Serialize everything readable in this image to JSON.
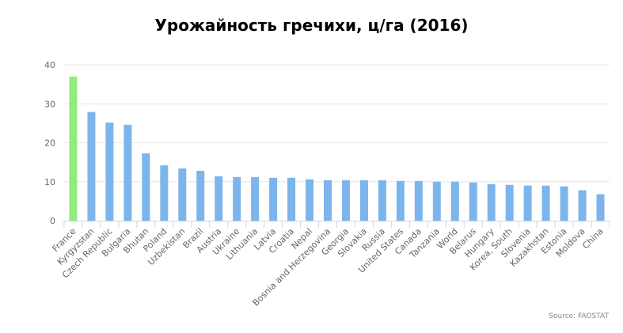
{
  "chart_data": {
    "type": "bar",
    "title": "Урожайность гречихи, ц/га (2016)",
    "xlabel": "",
    "ylabel": "",
    "ylim": [
      0,
      40
    ],
    "yticks": [
      0,
      10,
      20,
      30,
      40
    ],
    "grid": true,
    "categories": [
      "France",
      "Kyrgyzstan",
      "Czech Republic",
      "Bulgaria",
      "Bhutan",
      "Poland",
      "Uzbekistan",
      "Brazil",
      "Austria",
      "Ukraine",
      "Lithuania",
      "Latvia",
      "Croatia",
      "Nepal",
      "Bosnia and Herzegovina",
      "Georgia",
      "Slovakia",
      "Russia",
      "United States",
      "Canada",
      "Tanzania",
      "World",
      "Belarus",
      "Hungary",
      "Korea, South",
      "Slovenia",
      "Kazakhstan",
      "Estonia",
      "Moldova",
      "China"
    ],
    "values": [
      37.0,
      27.9,
      25.2,
      24.6,
      17.3,
      14.2,
      13.4,
      12.8,
      11.4,
      11.2,
      11.2,
      11.0,
      11.0,
      10.6,
      10.4,
      10.4,
      10.4,
      10.4,
      10.2,
      10.2,
      10.0,
      10.0,
      9.8,
      9.4,
      9.2,
      9.0,
      9.0,
      8.8,
      7.8,
      6.8
    ],
    "highlight": "France",
    "colors": {
      "bar": "#7cb5ec",
      "highlight": "#90ed7d",
      "grid": "#e6e6e6",
      "axis": "#ccd6eb"
    },
    "source": "Source: FAOSTAT"
  }
}
